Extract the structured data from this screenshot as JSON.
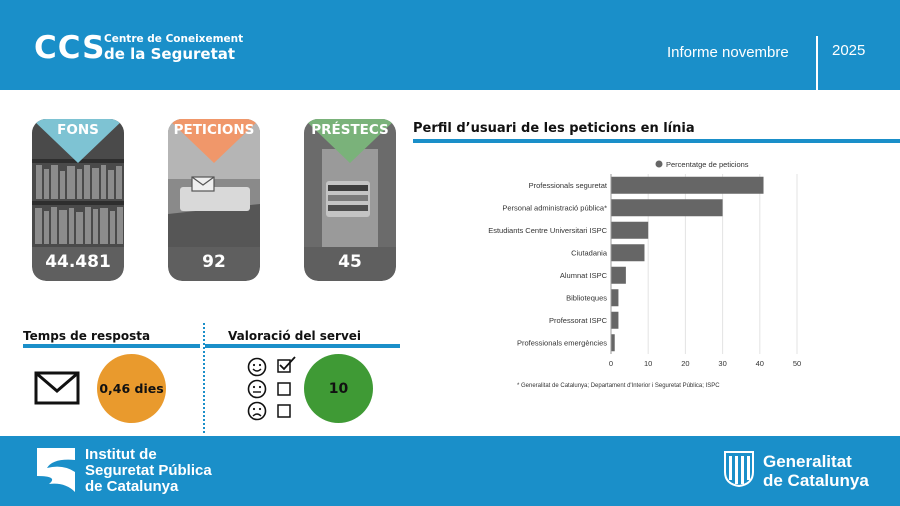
{
  "header": {
    "logo_short": "CCS",
    "logo_line1": "Centre de Coneixement",
    "logo_line2": "de la Seguretat",
    "report_title": "Informe novembre",
    "year": "2025"
  },
  "cards": [
    {
      "label": "FONS",
      "value": "44.481",
      "color": "#7ec3d3"
    },
    {
      "label": "PETICIONS",
      "value": "92",
      "color": "#f0976a"
    },
    {
      "label": "PRÉSTECS",
      "value": "45",
      "color": "#7ab27a"
    }
  ],
  "response": {
    "title": "Temps de resposta",
    "value": "0,46 dies",
    "icon": "envelope-icon",
    "color": "#e99a2d"
  },
  "rating": {
    "title": "Valoració del servei",
    "value": "10",
    "icons": [
      "smile-face-icon",
      "neutral-face-icon",
      "sad-face-icon"
    ],
    "color": "#3f9a35"
  },
  "chart": {
    "title": "Perfil d’usuari de les peticions en línia",
    "footnote": "* Generalitat de Catalunya; Departament d'Interior i Seguretat Pública; ISPC"
  },
  "chart_data": {
    "type": "bar",
    "orientation": "horizontal",
    "legend": "Percentatge de peticions",
    "legend_position": "top",
    "categories": [
      "Professionals seguretat",
      "Personal administració pública*",
      "Estudiants Centre Universitari ISPC",
      "Ciutadania",
      "Alumnat ISPC",
      "Biblioteques",
      "Professorat ISPC",
      "Professionals emergències"
    ],
    "series": [
      {
        "name": "Percentatge de peticions",
        "values": [
          41,
          30,
          10,
          9,
          4,
          2,
          2,
          1
        ]
      }
    ],
    "xlim": [
      0,
      50
    ],
    "xticks": [
      "0",
      "10",
      "20",
      "30",
      "40",
      "50"
    ],
    "grid": true,
    "bar_color": "#666666"
  },
  "footer": {
    "isp_line1": "Institut de",
    "isp_line2": "Seguretat Pública",
    "isp_line3": "de Catalunya",
    "gen_line1": "Generalitat",
    "gen_line2": "de Catalunya"
  }
}
